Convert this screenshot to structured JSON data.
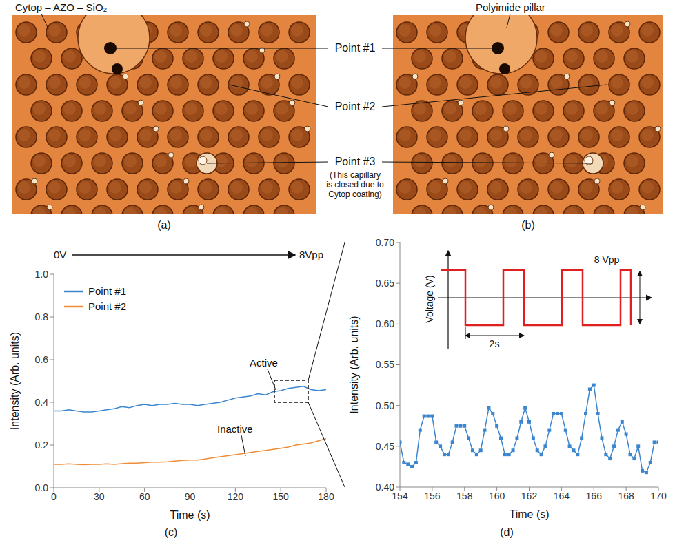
{
  "panels": {
    "a": {
      "label": "(a)",
      "texts": [
        "Cytop – AZO – SiO₂"
      ]
    },
    "b": {
      "label": "(b)",
      "texts": [
        "Polyimide pillar"
      ]
    }
  },
  "callouts": [
    {
      "label": "Point #1"
    },
    {
      "label": "Point #2"
    },
    {
      "label": "Point #3",
      "note": "(This capillary is closed due to Cytop coating)"
    }
  ],
  "chart_data": [
    {
      "caption": "(c)",
      "type": "line",
      "sweep": {
        "start": "0V",
        "end": "8Vpp"
      },
      "x_label": "Time (s)",
      "y_label": "Intensity (Arb. units)",
      "xlim": [
        0,
        180
      ],
      "xticks": [
        0,
        30,
        60,
        90,
        120,
        150,
        180
      ],
      "ylim": [
        0,
        1
      ],
      "yticks": [
        {
          "value": 0,
          "label": "0.0"
        },
        0.2,
        0.4,
        0.6,
        0.8,
        {
          "value": 1,
          "label": "1.0"
        }
      ],
      "grid": false,
      "legend": "upper left",
      "annotations": [
        "Active",
        "Inactive"
      ],
      "x": [
        0,
        5,
        10,
        15,
        20,
        25,
        30,
        35,
        40,
        45,
        50,
        55,
        60,
        65,
        70,
        75,
        80,
        85,
        90,
        95,
        100,
        105,
        110,
        115,
        120,
        125,
        130,
        135,
        140,
        145,
        150,
        155,
        160,
        165,
        170,
        175,
        180
      ],
      "series": [
        {
          "name": "Point #1",
          "color": "#3b86cf",
          "line_style": "solid",
          "values": [
            0.36,
            0.36,
            0.365,
            0.36,
            0.355,
            0.355,
            0.36,
            0.365,
            0.37,
            0.38,
            0.375,
            0.385,
            0.39,
            0.385,
            0.39,
            0.39,
            0.395,
            0.39,
            0.39,
            0.385,
            0.39,
            0.395,
            0.4,
            0.41,
            0.42,
            0.425,
            0.43,
            0.44,
            0.435,
            0.45,
            0.455,
            0.465,
            0.47,
            0.475,
            0.46,
            0.455,
            0.46
          ]
        },
        {
          "name": "Point #2",
          "color": "#f08c35",
          "line_style": "solid",
          "values": [
            0.11,
            0.11,
            0.112,
            0.11,
            0.108,
            0.11,
            0.11,
            0.112,
            0.11,
            0.113,
            0.115,
            0.115,
            0.118,
            0.12,
            0.12,
            0.122,
            0.125,
            0.128,
            0.13,
            0.13,
            0.135,
            0.14,
            0.145,
            0.15,
            0.155,
            0.16,
            0.165,
            0.17,
            0.175,
            0.18,
            0.185,
            0.19,
            0.2,
            0.205,
            0.21,
            0.22,
            0.23
          ]
        }
      ]
    },
    {
      "caption": "(d)",
      "type": "line",
      "x_label": "Time (s)",
      "y_label": "Intensity (Arb. units)",
      "xlim": [
        154,
        170
      ],
      "xticks": [
        154,
        156,
        158,
        160,
        162,
        164,
        166,
        168,
        170
      ],
      "ylim": [
        0.4,
        0.7
      ],
      "yticks": [
        {
          "value": 0.4,
          "label": "0.40"
        },
        {
          "value": 0.45,
          "label": "0.45"
        },
        {
          "value": 0.5,
          "label": "0.50"
        },
        {
          "value": 0.55,
          "label": "0.55"
        },
        {
          "value": 0.6,
          "label": "0.60"
        },
        {
          "value": 0.65,
          "label": "0.65"
        },
        {
          "value": 0.7,
          "label": "0.70"
        }
      ],
      "grid": false,
      "inset": {
        "y_label": "Voltage (V)",
        "amplitude_label": "8 Vpp",
        "period_label": "2s"
      },
      "x": [
        154,
        154.25,
        154.5,
        154.75,
        155,
        155.25,
        155.5,
        155.75,
        156,
        156.25,
        156.5,
        156.75,
        157,
        157.25,
        157.5,
        157.75,
        158,
        158.25,
        158.5,
        158.75,
        159,
        159.25,
        159.5,
        159.75,
        160,
        160.25,
        160.5,
        160.75,
        161,
        161.25,
        161.5,
        161.75,
        162,
        162.25,
        162.5,
        162.75,
        163,
        163.25,
        163.5,
        163.75,
        164,
        164.25,
        164.5,
        164.75,
        165,
        165.25,
        165.5,
        165.75,
        166,
        166.25,
        166.5,
        166.75,
        167,
        167.25,
        167.5,
        167.75,
        168,
        168.25,
        168.5,
        168.75,
        169,
        169.25,
        169.5,
        169.75,
        170
      ],
      "series": [
        {
          "color": "#3b86cf",
          "marker": "square",
          "line_style": "solid",
          "values": [
            0.455,
            0.43,
            0.428,
            0.425,
            0.43,
            0.47,
            0.487,
            0.487,
            0.487,
            0.455,
            0.45,
            0.44,
            0.44,
            0.455,
            0.475,
            0.475,
            0.475,
            0.46,
            0.445,
            0.44,
            0.445,
            0.47,
            0.497,
            0.49,
            0.475,
            0.46,
            0.44,
            0.44,
            0.445,
            0.46,
            0.48,
            0.497,
            0.48,
            0.46,
            0.445,
            0.44,
            0.45,
            0.47,
            0.49,
            0.49,
            0.49,
            0.47,
            0.45,
            0.445,
            0.44,
            0.46,
            0.49,
            0.52,
            0.525,
            0.49,
            0.46,
            0.44,
            0.435,
            0.45,
            0.47,
            0.48,
            0.465,
            0.44,
            0.435,
            0.45,
            0.42,
            0.418,
            0.43,
            0.455,
            0.455
          ]
        }
      ]
    }
  ]
}
